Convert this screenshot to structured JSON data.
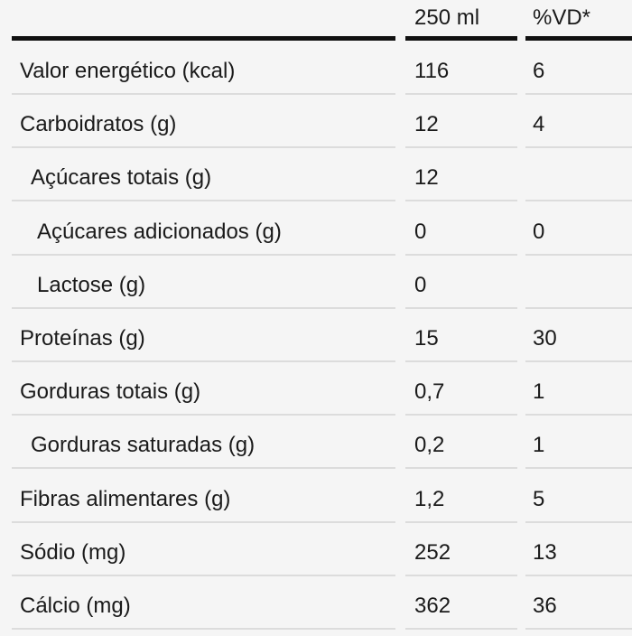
{
  "header": {
    "col_qty": "250 ml",
    "col_vd": "%VD*"
  },
  "rows": [
    {
      "name": "Valor energético (kcal)",
      "qty": "116",
      "vd": "6",
      "indent": 0
    },
    {
      "name": "Carboidratos (g)",
      "qty": "12",
      "vd": "4",
      "indent": 0
    },
    {
      "name": "Açúcares totais (g)",
      "qty": "12",
      "vd": "",
      "indent": 1
    },
    {
      "name": "Açúcares adicionados (g)",
      "qty": "0",
      "vd": "0",
      "indent": 2
    },
    {
      "name": "Lactose (g)",
      "qty": "0",
      "vd": "",
      "indent": 2
    },
    {
      "name": "Proteínas (g)",
      "qty": "15",
      "vd": "30",
      "indent": 0
    },
    {
      "name": "Gorduras totais (g)",
      "qty": "0,7",
      "vd": "1",
      "indent": 0
    },
    {
      "name": "Gorduras saturadas (g)",
      "qty": "0,2",
      "vd": "1",
      "indent": 1
    },
    {
      "name": "Fibras alimentares (g)",
      "qty": "1,2",
      "vd": "5",
      "indent": 0
    },
    {
      "name": "Sódio (mg)",
      "qty": "252",
      "vd": "13",
      "indent": 0
    },
    {
      "name": "Cálcio (mg)",
      "qty": "362",
      "vd": "36",
      "indent": 0
    }
  ]
}
